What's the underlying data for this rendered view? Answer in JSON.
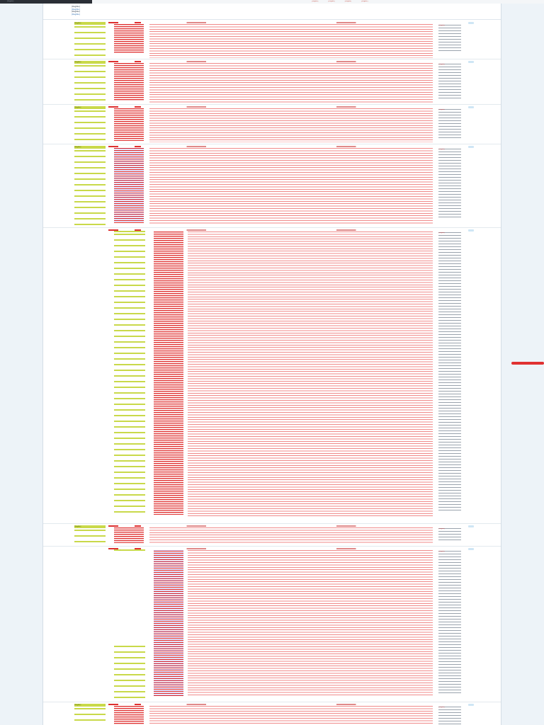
{
  "topbar": {
    "title": "[illegible]",
    "links": [
      "[illegible]",
      "[illegible]",
      "[illegible]",
      "[illegible]"
    ]
  },
  "header": {
    "nav_row_1": "[illegible]",
    "nav_row_2": "[illegible]",
    "nav_row_3": "[illegible]",
    "nav_row_4": "[illegible]"
  },
  "items": [
    {
      "meta": "[illegible]",
      "title": "[illegible]",
      "side": "[illegible]"
    },
    {
      "meta": "[illegible]",
      "title": "[illegible]",
      "side": "[illegible]"
    },
    {
      "meta": "[illegible]",
      "title": "[illegible]",
      "side": "[illegible]"
    },
    {
      "meta": "[illegible]",
      "title": "[illegible]",
      "side": "[illegible]"
    },
    {
      "meta": "[illegible]",
      "title": "[illegible]",
      "side": "[illegible]"
    },
    {
      "meta": "[illegible]",
      "title": "[illegible]",
      "side": "[illegible]"
    },
    {
      "meta": "[illegible]",
      "title": "[illegible]",
      "side": "[illegible]"
    },
    {
      "meta": "[illegible]",
      "title": "[illegible]",
      "side": "[illegible]"
    }
  ],
  "colors": {
    "accent": "#e03131",
    "meta_tag": "#c9d94a",
    "link": "#2b6cb0",
    "page_bg": "#edf3f8"
  }
}
